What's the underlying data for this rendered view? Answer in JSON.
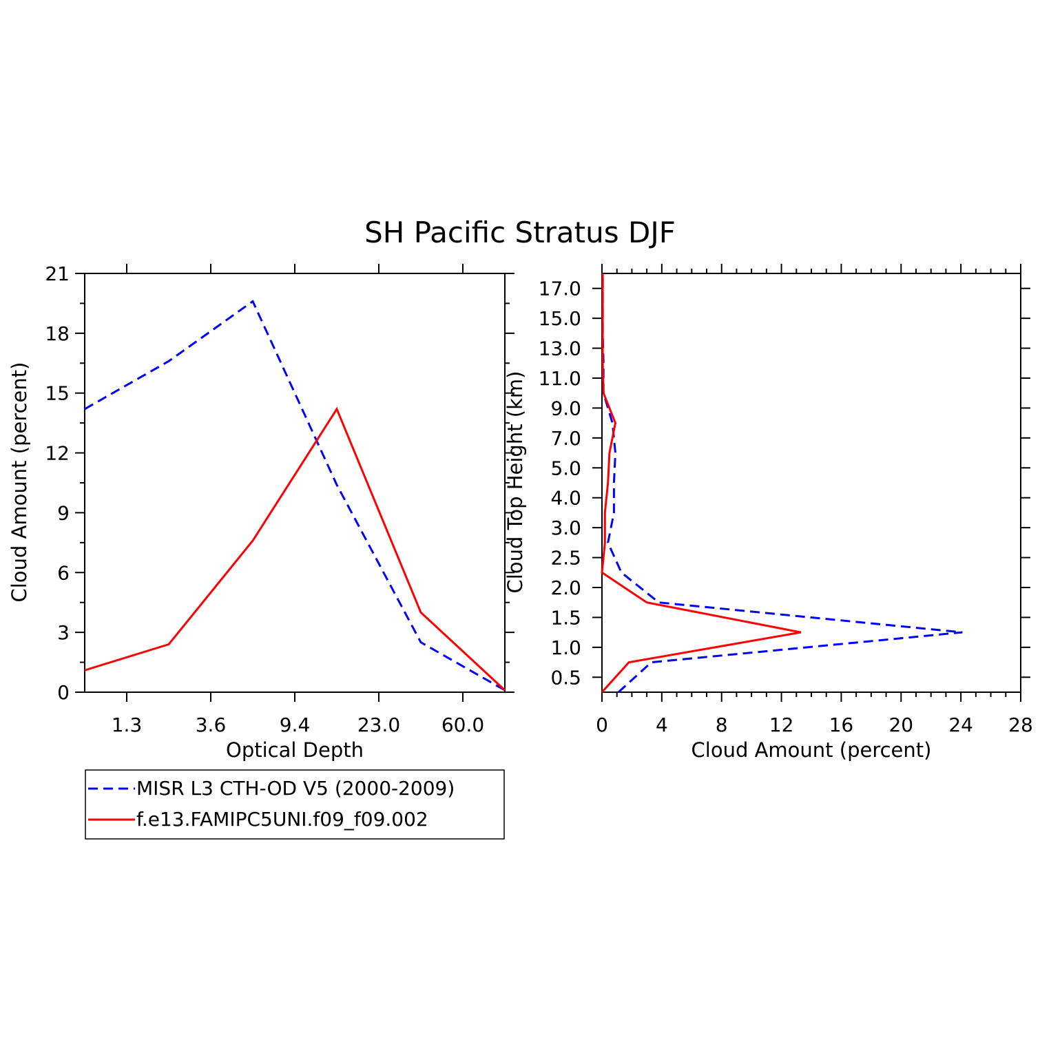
{
  "colors": {
    "obs": "#0000ff",
    "model": "#ff0000",
    "axes": "#000000",
    "background": "#ffffff"
  },
  "title": "SH Pacific Stratus DJF",
  "legend": {
    "placement": "bottom-left",
    "items": [
      {
        "label": "MISR L3 CTH-OD V5 (2000-2009)",
        "style": "dashed",
        "color": "#0000ff"
      },
      {
        "label": "f.e13.FAMIPC5UNI.f09_f09.002",
        "style": "solid",
        "color": "#ff0000"
      }
    ]
  },
  "chart_data": [
    {
      "type": "line",
      "title": "SH Pacific Stratus DJF",
      "xlabel": "Optical Depth",
      "ylabel": "Cloud Amount (percent)",
      "x_tick_labels": [
        "1.3",
        "3.6",
        "9.4",
        "23.0",
        "60.0"
      ],
      "x_tick_positions": [
        0.5,
        1.5,
        2.5,
        3.5,
        4.5
      ],
      "y_tick_labels": [
        "0",
        "3",
        "6",
        "9",
        "12",
        "15",
        "18",
        "21"
      ],
      "y_tick_values": [
        0,
        3,
        6,
        9,
        12,
        15,
        18,
        21
      ],
      "xlim": [
        0,
        5
      ],
      "ylim": [
        0,
        21
      ],
      "series": [
        {
          "name": "MISR L3 CTH-OD V5 (2000-2009)",
          "style": "dashed",
          "x": [
            0,
            1,
            2,
            3,
            4,
            5
          ],
          "values": [
            14.2,
            16.6,
            19.6,
            10.4,
            2.5,
            0.1
          ]
        },
        {
          "name": "f.e13.FAMIPC5UNI.f09_f09.002",
          "style": "solid",
          "x": [
            0,
            1,
            2,
            3,
            4,
            5
          ],
          "values": [
            1.1,
            2.4,
            7.6,
            14.2,
            4.0,
            0.1
          ]
        }
      ]
    },
    {
      "type": "line",
      "xlabel": "Cloud Amount (percent)",
      "ylabel": "Cloud Top Height (km)",
      "x_tick_labels": [
        "0",
        "4",
        "8",
        "12",
        "16",
        "20",
        "24",
        "28"
      ],
      "x_tick_values": [
        0,
        4,
        8,
        12,
        16,
        20,
        24,
        28
      ],
      "y_tick_labels": [
        "0.5",
        "1.0",
        "1.5",
        "2.0",
        "2.5",
        "3.0",
        "4.0",
        "5.0",
        "7.0",
        "9.0",
        "11.0",
        "13.0",
        "15.0",
        "17.0"
      ],
      "y_tick_positions": [
        0.5,
        1.5,
        2.5,
        3.5,
        4.5,
        5.5,
        6.5,
        7.5,
        8.5,
        9.5,
        10.5,
        11.5,
        12.5,
        13.5
      ],
      "xlim": [
        0,
        28
      ],
      "ylim": [
        0,
        14
      ],
      "series": [
        {
          "name": "MISR L3 CTH-OD V5 (2000-2009)",
          "style": "dashed",
          "y": [
            0,
            1,
            2,
            3,
            4,
            5,
            6,
            7,
            8,
            9,
            10,
            11,
            12,
            13,
            14
          ],
          "values": [
            1.1,
            3.3,
            24.1,
            3.8,
            1.3,
            0.4,
            0.8,
            0.8,
            0.9,
            0.7,
            0.1,
            0.1,
            0.05,
            0.05,
            0.05
          ]
        },
        {
          "name": "f.e13.FAMIPC5UNI.f09_f09.002",
          "style": "solid",
          "y": [
            0,
            1,
            2,
            3,
            4,
            5,
            6,
            7,
            8,
            9,
            10,
            11,
            12,
            13,
            14
          ],
          "values": [
            0.0,
            1.8,
            13.3,
            3.0,
            0.0,
            0.2,
            0.2,
            0.4,
            0.5,
            0.9,
            0.1,
            0.05,
            0.05,
            0.05,
            0.05
          ]
        }
      ]
    }
  ]
}
